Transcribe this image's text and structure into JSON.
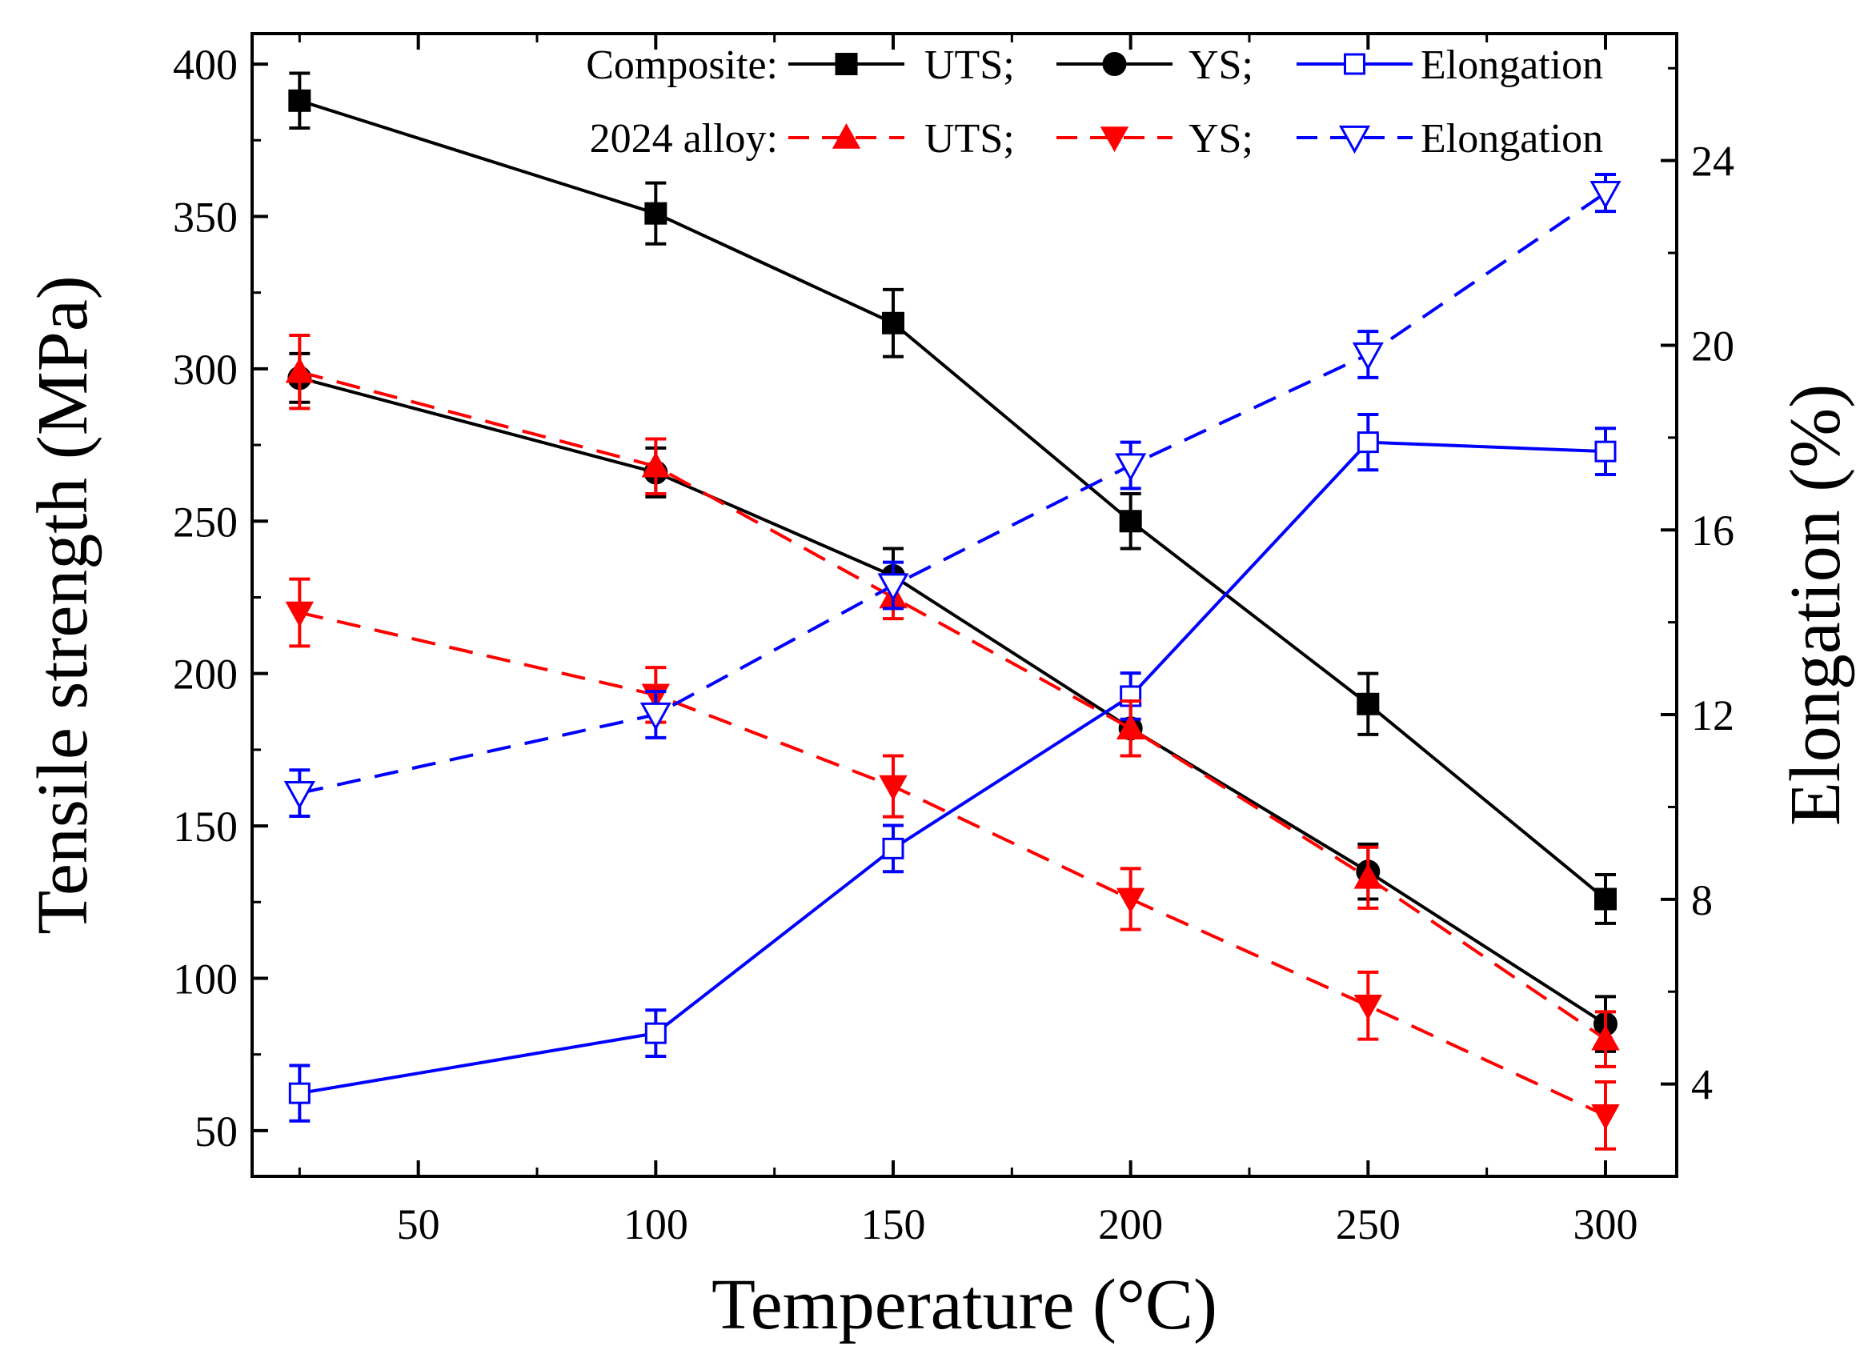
{
  "chart_data": {
    "type": "line",
    "title": "",
    "xlabel": "Temperature (°C)",
    "ylabel": "Tensile strength (MPa)",
    "y2label": "Elongation (%)",
    "xlim": [
      15,
      315
    ],
    "ylim": [
      35,
      410
    ],
    "y2lim": [
      2,
      26.75
    ],
    "xticks": [
      50,
      100,
      150,
      200,
      250,
      300
    ],
    "yticks": [
      50,
      100,
      150,
      200,
      250,
      300,
      350,
      400
    ],
    "y2ticks": [
      4,
      8,
      12,
      16,
      20,
      24
    ],
    "legend_position": "top-right",
    "x": [
      25,
      100,
      150,
      200,
      250,
      300
    ],
    "legend": {
      "row1_label": "Composite:",
      "row2_label": "2024 alloy:",
      "uts": "UTS;",
      "ys": "YS;",
      "elongation": "Elongation"
    },
    "series": [
      {
        "group": "Composite",
        "name": "UTS",
        "axis": "left",
        "color": "#000000",
        "dash": false,
        "marker": "filled-square",
        "values": [
          388,
          351,
          315,
          250,
          190,
          126
        ],
        "errors": [
          9,
          10,
          11,
          9,
          10,
          8
        ]
      },
      {
        "group": "Composite",
        "name": "YS",
        "axis": "left",
        "color": "#000000",
        "dash": false,
        "marker": "filled-circle",
        "values": [
          297,
          266,
          232,
          182,
          135,
          85
        ],
        "errors": [
          8,
          8,
          9,
          9,
          9,
          9
        ]
      },
      {
        "group": "Composite",
        "name": "Elongation",
        "axis": "right",
        "color": "#0000ff",
        "dash": false,
        "marker": "open-square",
        "values": [
          3.8,
          5.1,
          9.1,
          12.4,
          17.9,
          17.7
        ],
        "errors": [
          0.6,
          0.5,
          0.5,
          0.5,
          0.6,
          0.5
        ]
      },
      {
        "group": "2024 alloy",
        "name": "UTS",
        "axis": "left",
        "color": "#ff0000",
        "dash": true,
        "marker": "filled-triangle-up",
        "values": [
          299,
          268,
          225,
          182,
          133,
          80
        ],
        "errors": [
          12,
          9,
          7,
          9,
          10,
          9
        ]
      },
      {
        "group": "2024 alloy",
        "name": "YS",
        "axis": "left",
        "color": "#ff0000",
        "dash": true,
        "marker": "filled-triangle-down",
        "values": [
          220,
          193,
          163,
          126,
          91,
          55
        ],
        "errors": [
          11,
          9,
          10,
          10,
          11,
          11
        ]
      },
      {
        "group": "2024 alloy",
        "name": "Elongation",
        "axis": "right",
        "color": "#0000ff",
        "dash": true,
        "marker": "open-triangle-down",
        "values": [
          10.3,
          12.0,
          14.8,
          17.4,
          19.8,
          23.3
        ],
        "errors": [
          0.5,
          0.5,
          0.5,
          0.5,
          0.5,
          0.4
        ]
      }
    ]
  }
}
